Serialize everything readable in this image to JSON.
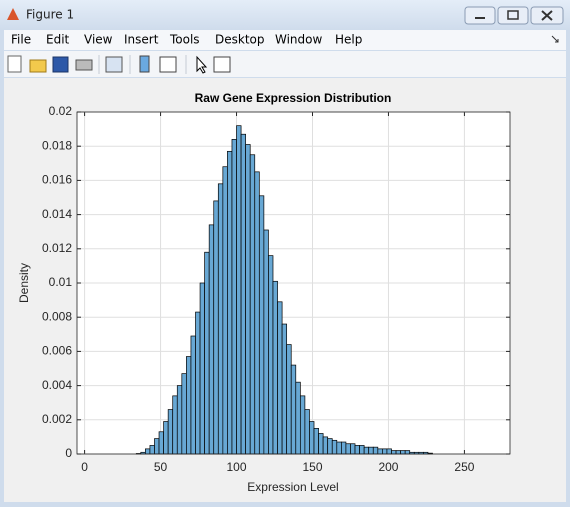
{
  "window": {
    "title": "Figure 1",
    "menu": [
      "File",
      "Edit",
      "View",
      "Insert",
      "Tools",
      "Desktop",
      "Window",
      "Help"
    ]
  },
  "chart_data": {
    "type": "histogram",
    "title": "Raw Gene Expression Distribution",
    "x_label": "Expression Level",
    "y_label": "Density",
    "bins": [
      34,
      37,
      40,
      43,
      46,
      49,
      52,
      55,
      58,
      61,
      64,
      67,
      70,
      73,
      76,
      79,
      82,
      85,
      88,
      91,
      94,
      97,
      100,
      103,
      106,
      109,
      112,
      115,
      118,
      121,
      124,
      127,
      130,
      133,
      136,
      139,
      142,
      145,
      148,
      151,
      154,
      157,
      160,
      163,
      166,
      169,
      172,
      175,
      178,
      181,
      184,
      187,
      190,
      193,
      196,
      199,
      202,
      205,
      208,
      211,
      214,
      217,
      220,
      223,
      226,
      229
    ],
    "values": [
      3e-05,
      0.0001,
      0.0003,
      0.0005,
      0.0009,
      0.0013,
      0.0019,
      0.0026,
      0.0034,
      0.004,
      0.0047,
      0.0057,
      0.0069,
      0.0083,
      0.01,
      0.0118,
      0.0134,
      0.0148,
      0.0158,
      0.0168,
      0.0177,
      0.0184,
      0.0192,
      0.0187,
      0.0181,
      0.0175,
      0.0165,
      0.0151,
      0.0131,
      0.0116,
      0.0101,
      0.0089,
      0.0076,
      0.0064,
      0.0052,
      0.0042,
      0.0034,
      0.0026,
      0.0019,
      0.0015,
      0.0012,
      0.001,
      0.0009,
      0.0008,
      0.0007,
      0.0007,
      0.0006,
      0.0006,
      0.0005,
      0.0005,
      0.0004,
      0.0004,
      0.0004,
      0.0003,
      0.0003,
      0.0003,
      0.0002,
      0.0002,
      0.0002,
      0.0002,
      0.0001,
      0.0001,
      0.0001,
      0.0001,
      5e-05
    ],
    "color": "#68a8d4",
    "edge_color": "#000000",
    "xlim": [
      -5,
      280
    ],
    "ylim": [
      0,
      0.02
    ],
    "xticks": [
      0,
      50,
      100,
      150,
      200,
      250
    ],
    "yticks": [
      0,
      0.002,
      0.004,
      0.006,
      0.008,
      0.01,
      0.012,
      0.014,
      0.016,
      0.018,
      0.02
    ],
    "grid": true
  }
}
